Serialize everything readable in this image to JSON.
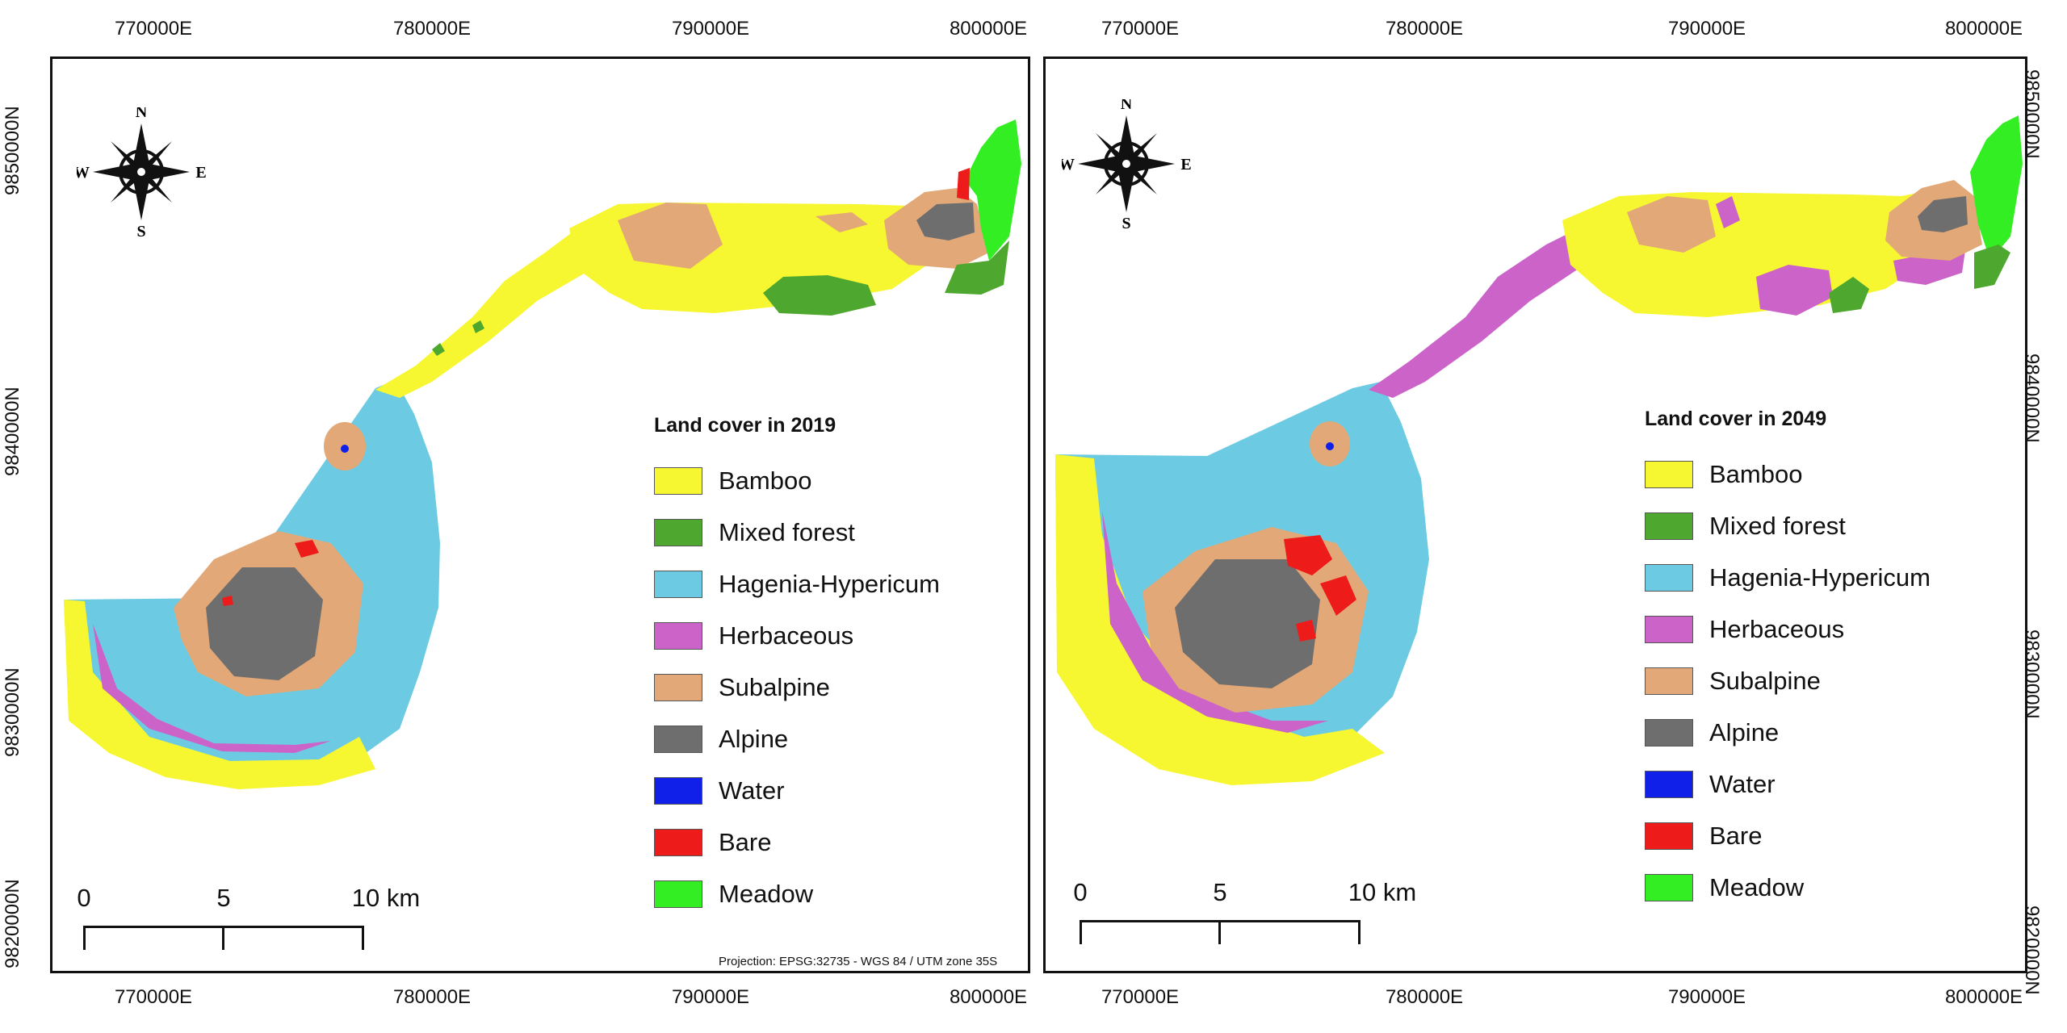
{
  "axes": {
    "x_ticks": [
      "770000E",
      "780000E",
      "790000E",
      "800000E"
    ],
    "y_ticks": [
      "9850000N",
      "9840000N",
      "9830000N",
      "9820000N"
    ]
  },
  "compass": {
    "n": "N",
    "s": "S",
    "e": "E",
    "w": "W"
  },
  "panels": [
    {
      "legend_title": "Land cover in 2019",
      "projection": "Projection: EPSG:32735 - WGS 84 / UTM zone 35S",
      "scale": {
        "labels": [
          "0",
          "5",
          "10 km"
        ]
      }
    },
    {
      "legend_title": "Land cover in 2049",
      "scale": {
        "labels": [
          "0",
          "5",
          "10 km"
        ]
      }
    }
  ],
  "legend_items": [
    {
      "label": "Bamboo",
      "color": "#f7f731"
    },
    {
      "label": "Mixed forest",
      "color": "#4ea72e"
    },
    {
      "label": "Hagenia-Hypericum",
      "color": "#6ccbe3"
    },
    {
      "label": "Herbaceous",
      "color": "#cc63c9"
    },
    {
      "label": "Subalpine",
      "color": "#e2a877"
    },
    {
      "label": "Alpine",
      "color": "#6e6e6e"
    },
    {
      "label": "Water",
      "color": "#1020e8"
    },
    {
      "label": "Bare",
      "color": "#ee1b1b"
    },
    {
      "label": "Meadow",
      "color": "#33ee22"
    }
  ]
}
